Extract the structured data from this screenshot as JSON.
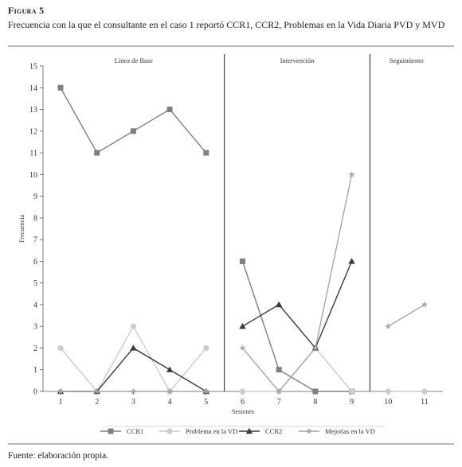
{
  "figure": {
    "label": "Figura 5",
    "title": "Frecuencia con la que el consultante en el caso 1 reportó CCR1, CCR2, Problemas en la Vida Diaria PVD y MVD",
    "source": "Fuente: elaboración propia."
  },
  "chart_data": {
    "type": "line",
    "x": [
      1,
      2,
      3,
      4,
      5,
      6,
      7,
      8,
      9,
      10,
      11
    ],
    "xlabel": "Sesiones",
    "ylabel": "Frecuencia",
    "ylim": [
      0,
      15
    ],
    "yticks": [
      0,
      1,
      2,
      3,
      4,
      5,
      6,
      7,
      8,
      9,
      10,
      11,
      12,
      13,
      14,
      15
    ],
    "grid": false,
    "legend_position": "bottom",
    "phases": [
      {
        "label": "Línea de Base",
        "sessions": [
          1,
          2,
          3,
          4,
          5
        ]
      },
      {
        "label": "Intervención",
        "sessions": [
          6,
          7,
          8,
          9
        ]
      },
      {
        "label": "Seguimiento",
        "sessions": [
          10,
          11
        ]
      }
    ],
    "series": [
      {
        "name": "CCR1",
        "marker": "square",
        "color": "#7f7f7f",
        "values": [
          14,
          11,
          12,
          13,
          11,
          6,
          1,
          0,
          0,
          null,
          null
        ]
      },
      {
        "name": "Problema en la VD",
        "marker": "circle",
        "color": "#cccccc",
        "values": [
          2,
          0,
          3,
          0,
          2,
          0,
          0,
          2,
          0,
          0,
          0
        ]
      },
      {
        "name": "CCR2",
        "marker": "triangle",
        "color": "#3a3a3a",
        "values": [
          0,
          0,
          2,
          1,
          0,
          3,
          4,
          2,
          6,
          null,
          null
        ]
      },
      {
        "name": "Mejorías en la VD",
        "marker": "star",
        "color": "#a6a6a6",
        "values": [
          0,
          0,
          0,
          0,
          0,
          2,
          0,
          2,
          10,
          3,
          4
        ]
      }
    ]
  }
}
